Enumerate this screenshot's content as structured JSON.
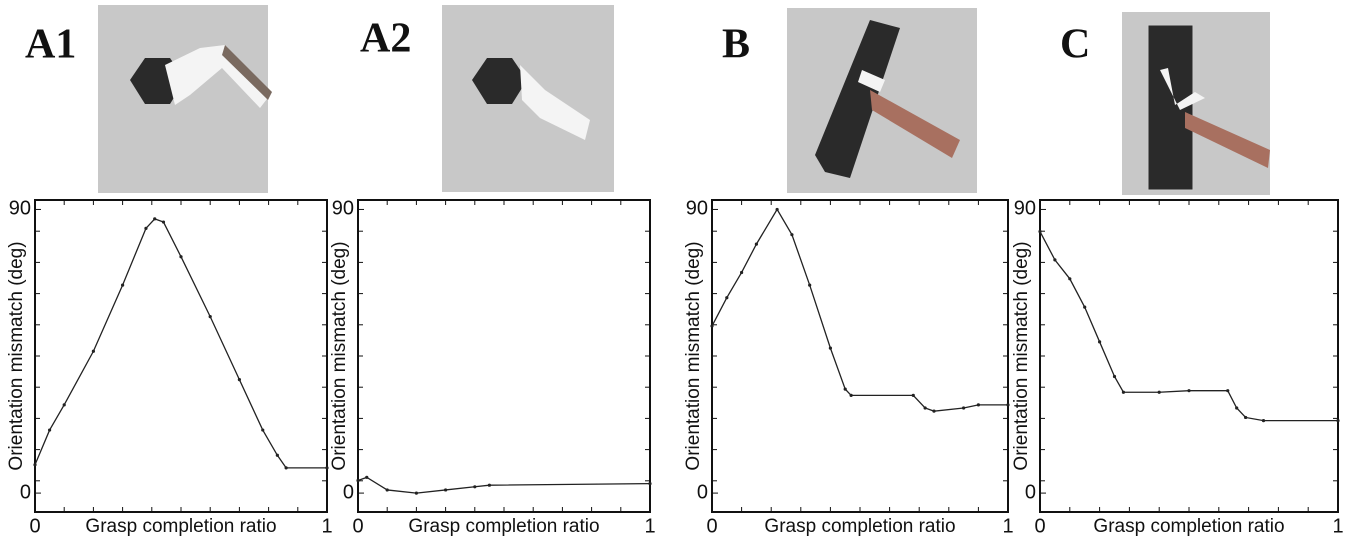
{
  "chart_data": [
    {
      "type": "line",
      "panel_label": "A1",
      "xlabel": "Grasp completion ratio",
      "ylabel": "Orientation mismatch (deg)",
      "x": [
        0,
        0.05,
        0.1,
        0.2,
        0.3,
        0.38,
        0.41,
        0.44,
        0.5,
        0.6,
        0.7,
        0.78,
        0.83,
        0.86,
        1
      ],
      "values": [
        9,
        20,
        28,
        45,
        66,
        84,
        87,
        86,
        75,
        56,
        36,
        20,
        12,
        8,
        8
      ],
      "color": "#222222",
      "xlim": [
        0,
        1
      ],
      "ylim": [
        -6,
        93
      ],
      "xticks": [
        0,
        1
      ],
      "yticks": [
        0,
        90
      ]
    },
    {
      "type": "line",
      "panel_label": "A2",
      "xlabel": "Grasp completion ratio",
      "ylabel": "Orientation mismatch (deg)",
      "x": [
        0,
        0.03,
        0.1,
        0.2,
        0.3,
        0.4,
        0.45,
        1
      ],
      "values": [
        4,
        5,
        1,
        0,
        1,
        2,
        2.5,
        3
      ],
      "color": "#222222",
      "xlim": [
        0,
        1
      ],
      "ylim": [
        -6,
        93
      ],
      "xticks": [
        0,
        1
      ],
      "yticks": [
        0,
        90
      ]
    },
    {
      "type": "line",
      "panel_label": "B",
      "xlabel": "Grasp completion ratio",
      "ylabel": "Orientation mismatch (deg)",
      "x": [
        0,
        0.05,
        0.1,
        0.15,
        0.22,
        0.27,
        0.33,
        0.4,
        0.45,
        0.47,
        0.68,
        0.72,
        0.75,
        0.85,
        0.9,
        1
      ],
      "values": [
        53,
        62,
        70,
        79,
        90,
        82,
        66,
        46,
        33,
        31,
        31,
        27,
        26,
        27,
        28,
        28
      ],
      "color": "#222222",
      "xlim": [
        0,
        1
      ],
      "ylim": [
        -6,
        93
      ],
      "xticks": [
        0,
        1
      ],
      "yticks": [
        0,
        90
      ]
    },
    {
      "type": "line",
      "panel_label": "C",
      "xlabel": "Grasp completion ratio",
      "ylabel": "Orientation mismatch (deg)",
      "x": [
        0,
        0.05,
        0.1,
        0.15,
        0.2,
        0.25,
        0.28,
        0.4,
        0.5,
        0.63,
        0.66,
        0.69,
        0.75,
        1
      ],
      "values": [
        83,
        74,
        68,
        59,
        48,
        37,
        32,
        32,
        32.5,
        32.5,
        27,
        24,
        23,
        23
      ],
      "color": "#222222",
      "xlim": [
        0,
        1
      ],
      "ylim": [
        -6,
        93
      ],
      "xticks": [
        0,
        1
      ],
      "yticks": [
        0,
        90
      ]
    }
  ]
}
